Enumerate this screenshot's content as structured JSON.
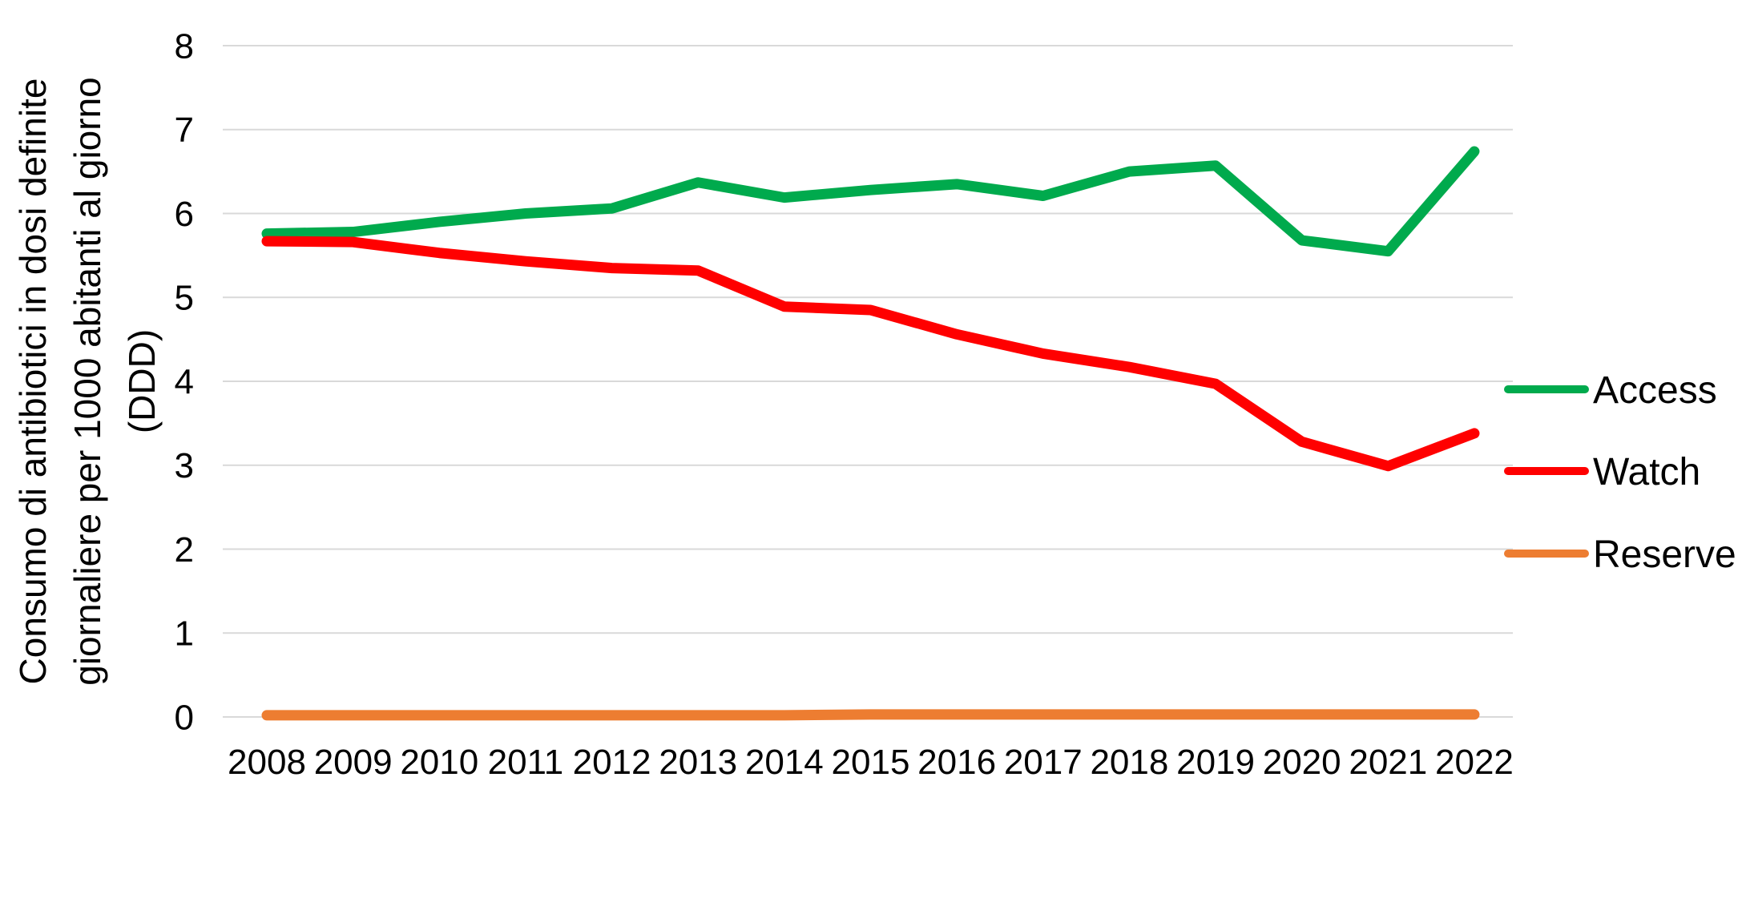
{
  "chart_data": {
    "type": "line",
    "title": "",
    "ylabel_lines": [
      "Consumo di antibiotici in dosi definite",
      "giornaliere per 1000 abitanti al giorno",
      "(DDD)"
    ],
    "categories": [
      "2008",
      "2009",
      "2010",
      "2011",
      "2012",
      "2013",
      "2014",
      "2015",
      "2016",
      "2017",
      "2018",
      "2019",
      "2020",
      "2021",
      "2022"
    ],
    "series": [
      {
        "name": "Access",
        "color": "#00AA4D",
        "values": [
          5.76,
          5.78,
          5.9,
          6.0,
          6.06,
          6.37,
          6.19,
          6.28,
          6.35,
          6.21,
          6.5,
          6.57,
          5.68,
          5.55,
          6.74
        ]
      },
      {
        "name": "Watch",
        "color": "#FF0000",
        "values": [
          5.67,
          5.66,
          5.53,
          5.43,
          5.35,
          5.32,
          4.89,
          4.85,
          4.56,
          4.33,
          4.17,
          3.97,
          3.28,
          2.99,
          3.38
        ]
      },
      {
        "name": "Reserve",
        "color": "#ED7D31",
        "values": [
          0.02,
          0.02,
          0.02,
          0.02,
          0.02,
          0.02,
          0.02,
          0.03,
          0.03,
          0.03,
          0.03,
          0.03,
          0.03,
          0.03,
          0.03
        ]
      }
    ],
    "ylim": [
      0,
      8
    ],
    "yticks": [
      "0",
      "1",
      "2",
      "3",
      "4",
      "5",
      "6",
      "7",
      "8"
    ],
    "xlabel": "",
    "grid": "horizontal",
    "gridline_color": "#D9D9D9",
    "legend_position": "right",
    "legend_entries": [
      "Access",
      "Watch",
      "Reserve"
    ],
    "text_color": "#000000",
    "background_color": "#FFFFFF"
  }
}
